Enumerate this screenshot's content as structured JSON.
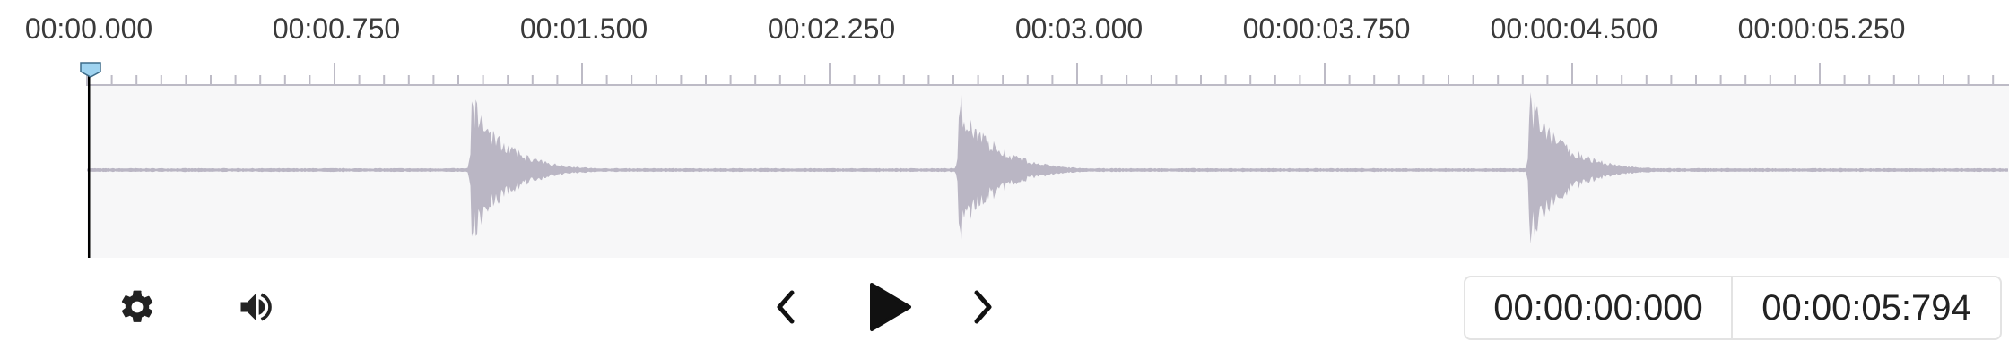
{
  "timeline": {
    "labels": [
      "00:00.000",
      "00:00.750",
      "00:01.500",
      "00:02.250",
      "00:03.000",
      "00:00:03.750",
      "00:00:04.500",
      "00:00:05.250"
    ]
  },
  "playback": {
    "current_time": "00:00:00:000",
    "total_duration": "00:00:05:794",
    "playhead_position": 0
  },
  "toolbar": {
    "settings_icon": "gear-icon",
    "volume_icon": "speaker-icon",
    "prev_icon": "chevron-left-icon",
    "play_icon": "play-icon",
    "next_icon": "chevron-right-icon"
  },
  "colors": {
    "waveform": "#bab6c4",
    "waveform_bg": "#f7f7f8",
    "playhead_marker": "#9fd3f0",
    "ruler": "#bdbbc6"
  }
}
